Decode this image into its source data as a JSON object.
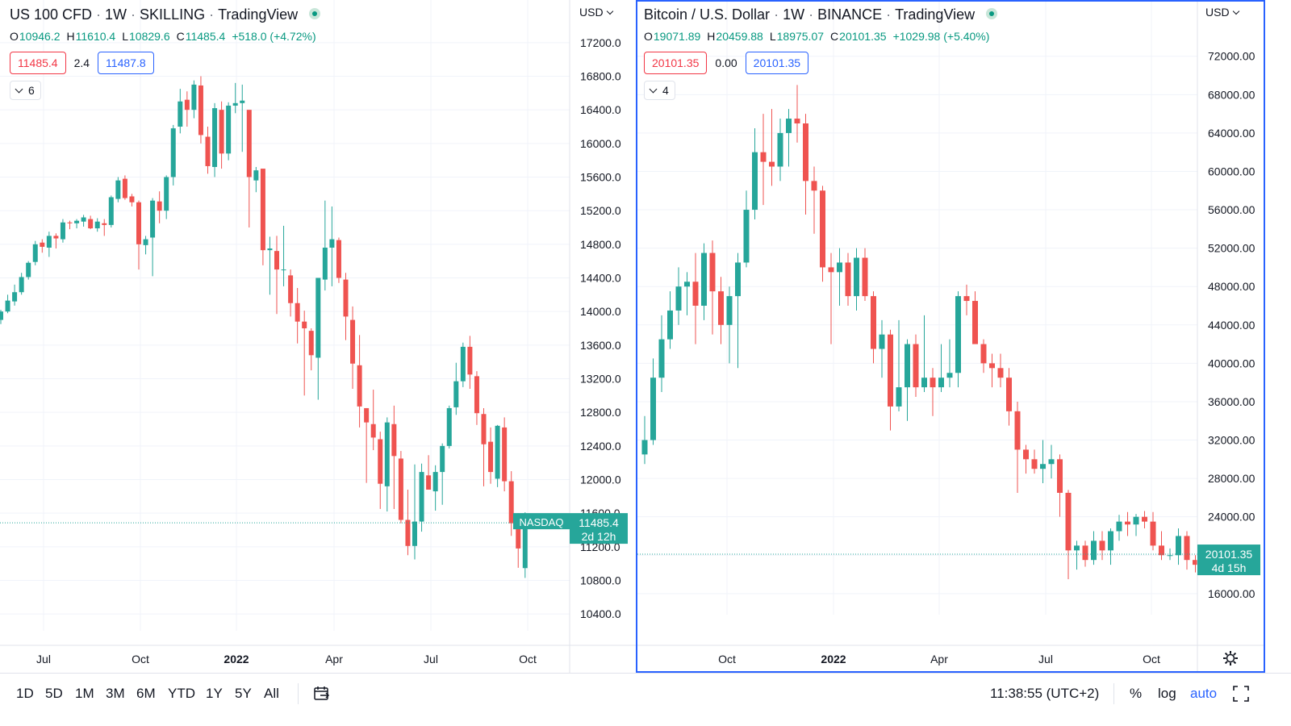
{
  "left_chart": {
    "header": {
      "symbol": "US 100 CFD",
      "interval": "1W",
      "exchange": "SKILLING",
      "source": "TradingView"
    },
    "ohlc": {
      "o": "10946.2",
      "h": "11610.4",
      "l": "10829.6",
      "c": "11485.4",
      "change": "+518.0 (+4.72%)"
    },
    "sell_price": "11485.4",
    "spread": "2.4",
    "buy_price": "11487.8",
    "indicators_count": "6",
    "currency": "USD",
    "price_axis_labels": [
      "17200.0",
      "16800.0",
      "16400.0",
      "16000.0",
      "15600.0",
      "15200.0",
      "14800.0",
      "14400.0",
      "14000.0",
      "13600.0",
      "13200.0",
      "12800.0",
      "12400.0",
      "12000.0",
      "11600.0",
      "11200.0",
      "10800.0",
      "10400.0"
    ],
    "time_axis_labels": [
      "Jul",
      "Oct",
      "2022",
      "Apr",
      "Jul",
      "Oct"
    ],
    "last_price_label": "NASDAQ",
    "last_price": "11485.4",
    "countdown": "2d 12h"
  },
  "right_chart": {
    "header": {
      "symbol": "Bitcoin / U.S. Dollar",
      "interval": "1W",
      "exchange": "BINANCE",
      "source": "TradingView"
    },
    "ohlc": {
      "o": "19071.89",
      "h": "20459.88",
      "l": "18975.07",
      "c": "20101.35",
      "change": "+1029.98 (+5.40%)"
    },
    "sell_price": "20101.35",
    "spread": "0.00",
    "buy_price": "20101.35",
    "indicators_count": "4",
    "currency": "USD",
    "price_axis_labels": [
      "72000.00",
      "68000.00",
      "64000.00",
      "60000.00",
      "56000.00",
      "52000.00",
      "48000.00",
      "44000.00",
      "40000.00",
      "36000.00",
      "32000.00",
      "28000.00",
      "24000.00",
      "20000.00",
      "16000.00"
    ],
    "time_axis_labels": [
      "Oct",
      "2022",
      "Apr",
      "Jul",
      "Oct"
    ],
    "last_price": "20101.35",
    "countdown": "4d 15h"
  },
  "toolbar": {
    "ranges": [
      "1D",
      "5D",
      "1M",
      "3M",
      "6M",
      "YTD",
      "1Y",
      "5Y",
      "All"
    ],
    "clock": "11:38:55 (UTC+2)",
    "percent": "%",
    "log": "log",
    "auto": "auto"
  },
  "colors": {
    "up": "#26a69a",
    "down": "#ef5350",
    "accent": "#2962ff"
  },
  "chart_data": [
    {
      "type": "candlestick",
      "title": "US 100 CFD · 1W · SKILLING",
      "ylim": [
        10200,
        17400
      ],
      "x_range": [
        "2021-06",
        "2022-10"
      ],
      "candles": [
        [
          13900,
          14000,
          13850,
          14020
        ],
        [
          14000,
          14130,
          13980,
          14200
        ],
        [
          14120,
          14230,
          14070,
          14320
        ],
        [
          14230,
          14410,
          14200,
          14460
        ],
        [
          14410,
          14580,
          14380,
          14600
        ],
        [
          14590,
          14800,
          14550,
          14840
        ],
        [
          14820,
          14770,
          14700,
          14860
        ],
        [
          14760,
          14900,
          14650,
          14950
        ],
        [
          14900,
          14870,
          14750,
          14930
        ],
        [
          14860,
          15060,
          14820,
          15100
        ],
        [
          15060,
          15050,
          14980,
          15080
        ],
        [
          15050,
          15080,
          14990,
          15100
        ],
        [
          15070,
          15120,
          15010,
          15150
        ],
        [
          15100,
          14990,
          14980,
          15140
        ],
        [
          14990,
          15070,
          14950,
          15110
        ],
        [
          15050,
          15030,
          14900,
          15100
        ],
        [
          15030,
          15360,
          15000,
          15380
        ],
        [
          15340,
          15560,
          15300,
          15600
        ],
        [
          15580,
          15350,
          15330,
          15620
        ],
        [
          15370,
          15300,
          15250,
          15400
        ],
        [
          15300,
          14800,
          14500,
          15320
        ],
        [
          14790,
          14860,
          14680,
          14900
        ],
        [
          14880,
          15320,
          14420,
          15350
        ],
        [
          15310,
          15200,
          15050,
          15430
        ],
        [
          15200,
          15600,
          15100,
          15620
        ],
        [
          15600,
          16180,
          15500,
          16220
        ],
        [
          16200,
          16500,
          16120,
          16650
        ],
        [
          16520,
          16400,
          16200,
          16620
        ],
        [
          16400,
          16700,
          16300,
          16750
        ],
        [
          16690,
          16100,
          16000,
          16800
        ],
        [
          16080,
          15730,
          15640,
          16200
        ],
        [
          15720,
          16420,
          15600,
          16480
        ],
        [
          16400,
          15880,
          15700,
          16500
        ],
        [
          15880,
          16450,
          15800,
          16490
        ],
        [
          16450,
          16480,
          16360,
          16720
        ],
        [
          16480,
          16510,
          15900,
          16700
        ],
        [
          16400,
          15600,
          15000,
          16380
        ],
        [
          15560,
          15680,
          15420,
          15720
        ],
        [
          15700,
          14730,
          14550,
          15640
        ],
        [
          14730,
          14750,
          14200,
          14890
        ],
        [
          14720,
          14500,
          13970,
          14900
        ],
        [
          14500,
          14500,
          14300,
          15020
        ],
        [
          14430,
          14100,
          13940,
          14500
        ],
        [
          14100,
          13880,
          13620,
          14280
        ],
        [
          13880,
          13800,
          13000,
          14010
        ],
        [
          13770,
          13480,
          13300,
          13800
        ],
        [
          13450,
          14400,
          12950,
          14400
        ],
        [
          14380,
          14760,
          14250,
          15320
        ],
        [
          14760,
          14860,
          14300,
          15250
        ],
        [
          14850,
          14400,
          14340,
          14880
        ],
        [
          14380,
          13940,
          13660,
          14460
        ],
        [
          13900,
          13380,
          13080,
          14060
        ],
        [
          13360,
          12870,
          12620,
          13720
        ],
        [
          12850,
          12680,
          11960,
          12850
        ],
        [
          12660,
          12500,
          12350,
          13070
        ],
        [
          12480,
          11950,
          11650,
          12570
        ],
        [
          11920,
          12680,
          11620,
          12740
        ],
        [
          12660,
          12280,
          11650,
          12880
        ],
        [
          12250,
          11520,
          11480,
          12340
        ],
        [
          11520,
          11210,
          11100,
          11880
        ],
        [
          11210,
          11500,
          11050,
          12180
        ],
        [
          11500,
          12090,
          11380,
          12190
        ],
        [
          12050,
          11880,
          11900,
          12290
        ],
        [
          11860,
          12090,
          11630,
          12170
        ],
        [
          12090,
          12400,
          11700,
          12430
        ],
        [
          12400,
          12850,
          12370,
          12880
        ],
        [
          12860,
          13170,
          12770,
          13390
        ],
        [
          13170,
          13580,
          13100,
          13630
        ],
        [
          13580,
          13250,
          13080,
          13710
        ],
        [
          13230,
          12790,
          12650,
          13290
        ],
        [
          12780,
          12420,
          11920,
          12850
        ],
        [
          12450,
          12090,
          11950,
          12620
        ],
        [
          12010,
          12640,
          11910,
          12650
        ],
        [
          12620,
          11980,
          11860,
          12740
        ],
        [
          11980,
          11480,
          11330,
          12100
        ],
        [
          11470,
          11180,
          10950,
          11600
        ],
        [
          10946.2,
          11485.4,
          10829.6,
          11610.4
        ]
      ]
    },
    {
      "type": "candlestick",
      "title": "Bitcoin / U.S. Dollar · 1W · BINANCE",
      "ylim": [
        13800,
        74500
      ],
      "x_range": [
        "2021-07",
        "2022-10"
      ],
      "candles": [
        [
          30500,
          32000,
          29500,
          34500
        ],
        [
          32000,
          38500,
          31500,
          40500
        ],
        [
          38500,
          42500,
          37000,
          45000
        ],
        [
          42500,
          45500,
          41500,
          47500
        ],
        [
          45500,
          48000,
          44000,
          50000
        ],
        [
          48000,
          48500,
          45000,
          49500
        ],
        [
          48500,
          46000,
          42000,
          51500
        ],
        [
          46000,
          51500,
          44500,
          52500
        ],
        [
          51500,
          47500,
          43000,
          52800
        ],
        [
          47500,
          44000,
          42000,
          49000
        ],
        [
          44000,
          47000,
          40000,
          48000
        ],
        [
          47000,
          50500,
          39500,
          51500
        ],
        [
          50500,
          56000,
          50000,
          58000
        ],
        [
          56000,
          62000,
          55000,
          64500
        ],
        [
          62000,
          61000,
          56500,
          66000
        ],
        [
          61000,
          60500,
          58500,
          66500
        ],
        [
          60500,
          64000,
          59000,
          65500
        ],
        [
          64000,
          65500,
          60500,
          66500
        ],
        [
          65500,
          65000,
          63000,
          69000
        ],
        [
          65000,
          59000,
          55500,
          66000
        ],
        [
          59000,
          58000,
          53500,
          60500
        ],
        [
          58000,
          50000,
          48500,
          58500
        ],
        [
          50000,
          49500,
          42000,
          51500
        ],
        [
          49500,
          50500,
          46000,
          52000
        ],
        [
          50500,
          47000,
          46000,
          51500
        ],
        [
          47000,
          51000,
          45500,
          52000
        ],
        [
          51000,
          47000,
          46500,
          52000
        ],
        [
          47000,
          41500,
          40000,
          47500
        ],
        [
          41500,
          43000,
          38500,
          44500
        ],
        [
          43000,
          35500,
          33000,
          43500
        ],
        [
          35500,
          37500,
          35000,
          44500
        ],
        [
          37500,
          42000,
          34000,
          42500
        ],
        [
          42000,
          37500,
          36500,
          43000
        ],
        [
          37500,
          38500,
          37000,
          45000
        ],
        [
          38500,
          37500,
          34500,
          39500
        ],
        [
          37500,
          38500,
          37000,
          42000
        ],
        [
          38500,
          39000,
          37500,
          42500
        ],
        [
          39000,
          47000,
          37500,
          47500
        ],
        [
          47000,
          46500,
          45000,
          48200
        ],
        [
          46500,
          42000,
          42500,
          47500
        ],
        [
          42000,
          40000,
          39000,
          42500
        ],
        [
          40000,
          39500,
          37500,
          41000
        ],
        [
          39500,
          38500,
          37500,
          41000
        ],
        [
          38500,
          35000,
          33500,
          39500
        ],
        [
          35000,
          31000,
          26500,
          36000
        ],
        [
          31000,
          30000,
          28500,
          31500
        ],
        [
          30000,
          29000,
          28500,
          31000
        ],
        [
          29000,
          29500,
          27500,
          32000
        ],
        [
          29500,
          30000,
          28000,
          31500
        ],
        [
          30000,
          26500,
          24000,
          30500
        ],
        [
          26500,
          20500,
          17500,
          26800
        ],
        [
          20500,
          21000,
          18500,
          21500
        ],
        [
          21000,
          19500,
          18800,
          21500
        ],
        [
          19500,
          21500,
          19000,
          22500
        ],
        [
          21500,
          20500,
          19500,
          22500
        ],
        [
          20500,
          22500,
          19000,
          22800
        ],
        [
          22500,
          23500,
          21500,
          24200
        ],
        [
          23500,
          23200,
          22000,
          24500
        ],
        [
          23200,
          24000,
          22000,
          24300
        ],
        [
          24000,
          23500,
          22800,
          24600
        ],
        [
          23500,
          21000,
          20500,
          24500
        ],
        [
          21000,
          20000,
          19500,
          22500
        ],
        [
          20000,
          20000,
          19500,
          20700
        ],
        [
          20000,
          22000,
          19000,
          22800
        ],
        [
          22000,
          19500,
          18500,
          22500
        ],
        [
          19500,
          19000,
          18200,
          20000
        ],
        [
          19071.89,
          20101.35,
          18975.07,
          20459.88
        ]
      ]
    }
  ]
}
